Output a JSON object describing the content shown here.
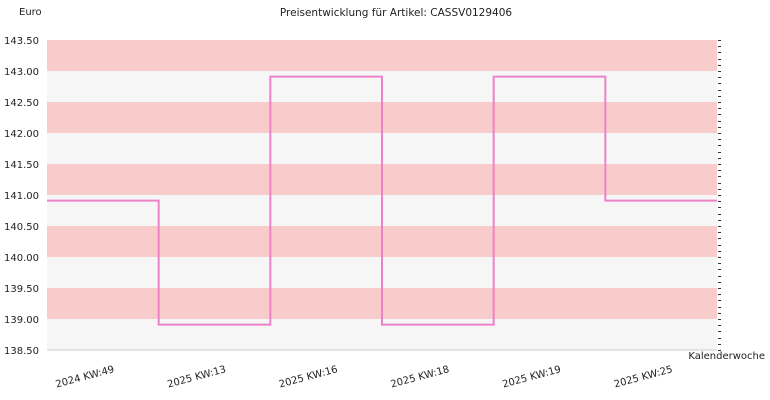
{
  "chart_data": {
    "type": "line",
    "title": "Preisentwicklung für Artikel: CASSV0129406",
    "ylabel": "Euro",
    "xlabel": "Kalenderwoche",
    "ylim": [
      138.5,
      143.5
    ],
    "yticks": [
      138.5,
      139.0,
      139.5,
      140.0,
      140.5,
      141.0,
      141.5,
      142.0,
      142.5,
      143.0,
      143.5
    ],
    "ytick_labels": [
      "138.50",
      "139.00",
      "139.50",
      "140.00",
      "140.50",
      "141.00",
      "141.50",
      "142.00",
      "142.50",
      "143.00",
      "143.50"
    ],
    "categories": [
      "2024 KW:49",
      "2025 KW:13",
      "2025 KW:16",
      "2025 KW:18",
      "2025 KW:19",
      "2025 KW:25"
    ],
    "series": [
      {
        "values": [
          140.91,
          138.91,
          142.91,
          138.91,
          142.91,
          140.91
        ],
        "color": "#ee82c8"
      }
    ],
    "step": true,
    "grid": true,
    "band_colors": [
      "#f9cccc",
      "#f6f6f6"
    ]
  }
}
